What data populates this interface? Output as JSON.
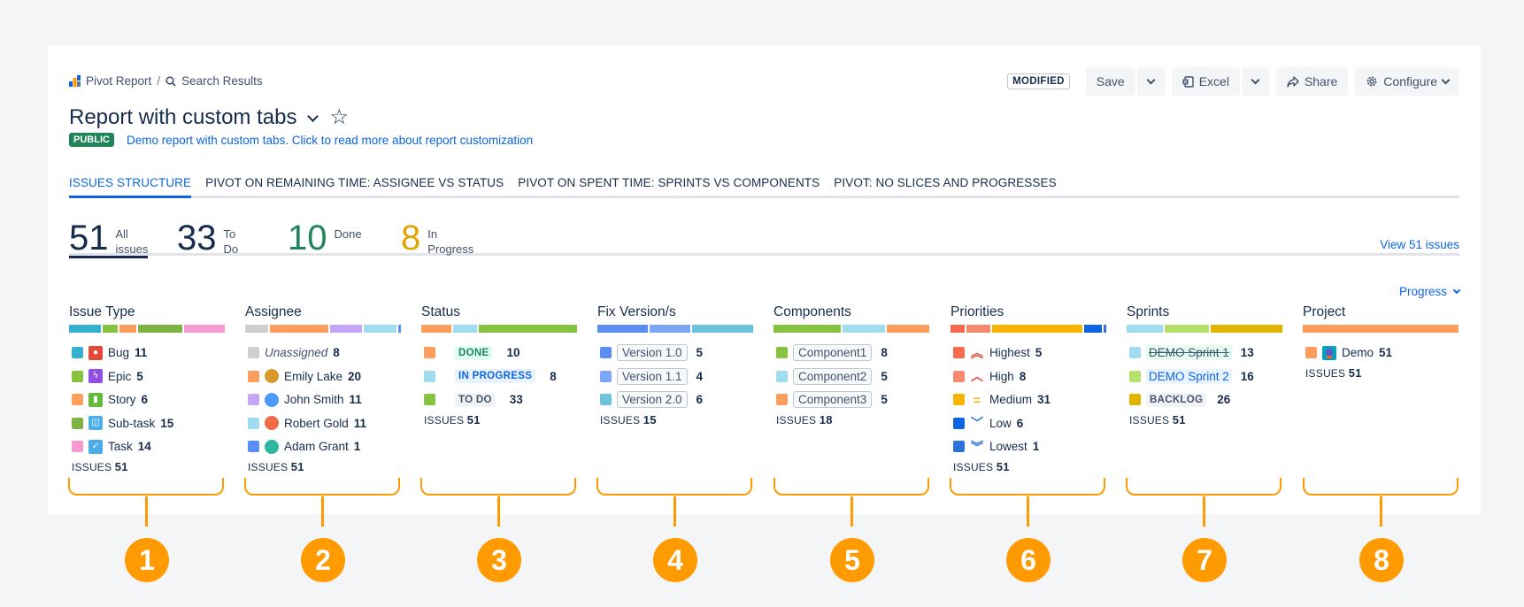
{
  "breadcrumb": {
    "root": "Pivot Report",
    "current": "Search Results"
  },
  "toolbar": {
    "status": "MODIFIED",
    "save": "Save",
    "excel": "Excel",
    "share": "Share",
    "configure": "Configure"
  },
  "report": {
    "title": "Report with custom tabs",
    "visibility": "PUBLIC",
    "description": "Demo report with custom tabs. Click to read more about report customization"
  },
  "tabs": [
    "ISSUES STRUCTURE",
    "PIVOT ON REMAINING TIME: ASSIGNEE VS STATUS",
    "PIVOT ON SPENT TIME: SPRINTS VS COMPONENTS",
    "PIVOT: NO SLICES AND PROGRESSES"
  ],
  "stats": [
    {
      "value": "51",
      "label1": "All",
      "label2": "issues",
      "color": "#172b4d"
    },
    {
      "value": "33",
      "label1": "To",
      "label2": "Do",
      "color": "#172b4d"
    },
    {
      "value": "10",
      "label1": "Done",
      "label2": "",
      "color": "#1f845a"
    },
    {
      "value": "8",
      "label1": "In",
      "label2": "Progress",
      "color": "#e2a400"
    }
  ],
  "view_issues": "View 51 issues",
  "progress_label": "Progress",
  "issues_label": "ISSUES",
  "columns": {
    "issue_type": {
      "title": "Issue Type",
      "total": "51",
      "items": [
        {
          "label": "Bug",
          "count": "11",
          "color": "#36b0d1",
          "icon": "bug-icon",
          "icon_color": "#e5493a"
        },
        {
          "label": "Epic",
          "count": "5",
          "color": "#86c440",
          "icon": "epic-icon",
          "icon_color": "#904ee2"
        },
        {
          "label": "Story",
          "count": "6",
          "color": "#ff9d5c",
          "icon": "story-icon",
          "icon_color": "#63ba3c"
        },
        {
          "label": "Sub-task",
          "count": "15",
          "color": "#7cb342",
          "icon": "subtask-icon",
          "icon_color": "#4bade8"
        },
        {
          "label": "Task",
          "count": "14",
          "color": "#f59bd1",
          "icon": "task-icon",
          "icon_color": "#4bade8"
        }
      ]
    },
    "assignee": {
      "title": "Assignee",
      "total": "51",
      "items": [
        {
          "label": "Unassigned",
          "count": "8",
          "color": "#cfcfcf",
          "avatar": ""
        },
        {
          "label": "Emily Lake",
          "count": "20",
          "color": "#ff9d5c",
          "avatar": "#d89a2a"
        },
        {
          "label": "John Smith",
          "count": "11",
          "color": "#c3a6f5",
          "avatar": "#4c9aff"
        },
        {
          "label": "Robert Gold",
          "count": "11",
          "color": "#9fdcf0",
          "avatar": "#f06a45"
        },
        {
          "label": "Adam Grant",
          "count": "1",
          "color": "#5a8ef5",
          "avatar": "#2eb6a0"
        }
      ]
    },
    "status": {
      "title": "Status",
      "total": "51",
      "items": [
        {
          "label": "DONE",
          "count": "10",
          "color": "#ff9d5c",
          "bg": "#dcfff1",
          "fg": "#1f845a"
        },
        {
          "label": "IN PROGRESS",
          "count": "8",
          "color": "#9fdcf0",
          "bg": "#e9f2ff",
          "fg": "#0c66e4"
        },
        {
          "label": "TO DO",
          "count": "33",
          "color": "#86c440",
          "bg": "#f1f2f4",
          "fg": "#44546f"
        }
      ]
    },
    "fix_version": {
      "title": "Fix Version/s",
      "total": "15",
      "items": [
        {
          "label": "Version 1.0",
          "count": "5",
          "color": "#5a8ef5"
        },
        {
          "label": "Version 1.1",
          "count": "4",
          "color": "#7ca6f7"
        },
        {
          "label": "Version 2.0",
          "count": "6",
          "color": "#6cc4dc"
        }
      ]
    },
    "components": {
      "title": "Components",
      "total": "18",
      "items": [
        {
          "label": "Component1",
          "count": "8",
          "color": "#86c440"
        },
        {
          "label": "Component2",
          "count": "5",
          "color": "#9fdcf0"
        },
        {
          "label": "Component3",
          "count": "5",
          "color": "#ff9d5c"
        }
      ]
    },
    "priorities": {
      "title": "Priorities",
      "total": "51",
      "items": [
        {
          "label": "Highest",
          "count": "5",
          "color": "#f66b4d",
          "icon": "priority-highest-icon",
          "icon_color": "#e5493a",
          "glyph": "︽"
        },
        {
          "label": "High",
          "count": "8",
          "color": "#f6896e",
          "icon": "priority-high-icon",
          "icon_color": "#e5493a",
          "glyph": "︿"
        },
        {
          "label": "Medium",
          "count": "31",
          "color": "#f8b400",
          "icon": "priority-medium-icon",
          "icon_color": "#ffab00",
          "glyph": "="
        },
        {
          "label": "Low",
          "count": "6",
          "color": "#0c66e4",
          "icon": "priority-low-icon",
          "icon_color": "#2d72d9",
          "glyph": "﹀"
        },
        {
          "label": "Lowest",
          "count": "1",
          "color": "#2d72d9",
          "icon": "priority-lowest-icon",
          "icon_color": "#2d72d9",
          "glyph": "︾"
        }
      ]
    },
    "sprints": {
      "title": "Sprints",
      "total": "51",
      "items": [
        {
          "label": "DEMO Sprint 1",
          "count": "13",
          "color": "#9fdcf0",
          "style": "closed"
        },
        {
          "label": "DEMO Sprint 2",
          "count": "16",
          "color": "#b5e06a",
          "style": "active"
        },
        {
          "label": "BACKLOG",
          "count": "26",
          "color": "#e2b400",
          "style": "backlog"
        }
      ]
    },
    "project": {
      "title": "Project",
      "total": "51",
      "items": [
        {
          "label": "Demo",
          "count": "51",
          "color": "#ff9d5c"
        }
      ]
    }
  },
  "markers": [
    "1",
    "2",
    "3",
    "4",
    "5",
    "6",
    "7",
    "8"
  ],
  "colors": {
    "accent": "#ff9a00",
    "link": "#0c66e4",
    "done": "#1f845a",
    "in_progress": "#e2a400"
  }
}
